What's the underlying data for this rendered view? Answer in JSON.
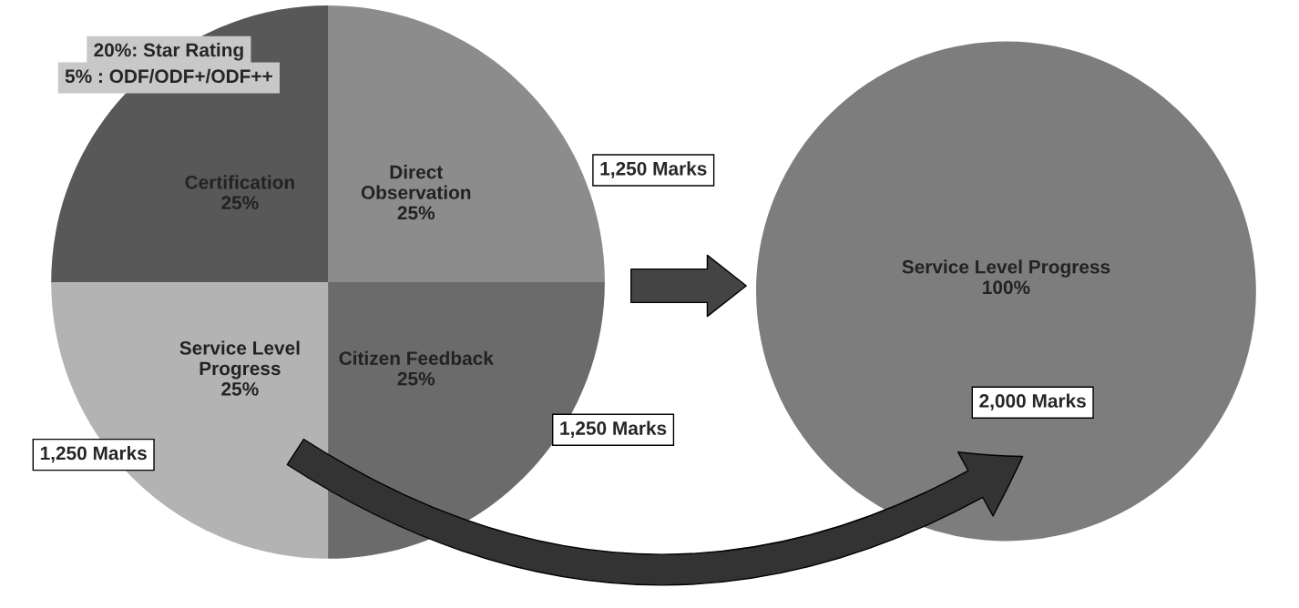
{
  "chart_data": [
    {
      "type": "pie",
      "categories": [
        "Direct\nObservation",
        "Citizen Feedback",
        "Service Level\nProgress",
        "Certification"
      ],
      "values": [
        25,
        25,
        25,
        25
      ],
      "value_labels": [
        "25%",
        "25%",
        "25%",
        "25%"
      ],
      "colors": [
        "#8c8c8c",
        "#6b6b6b",
        "#b3b3b3",
        "#585858"
      ],
      "annotations": [
        "20%: Star Rating",
        "5% : ODF/ODF+/ODF++",
        "1,250 Marks",
        "1,250 Marks",
        "1,250 Marks"
      ]
    },
    {
      "type": "pie",
      "categories": [
        "Service Level Progress"
      ],
      "values": [
        100
      ],
      "value_labels": [
        "100%"
      ],
      "colors": [
        "#7d7d7d"
      ],
      "annotations": [
        "2,000 Marks"
      ]
    }
  ]
}
